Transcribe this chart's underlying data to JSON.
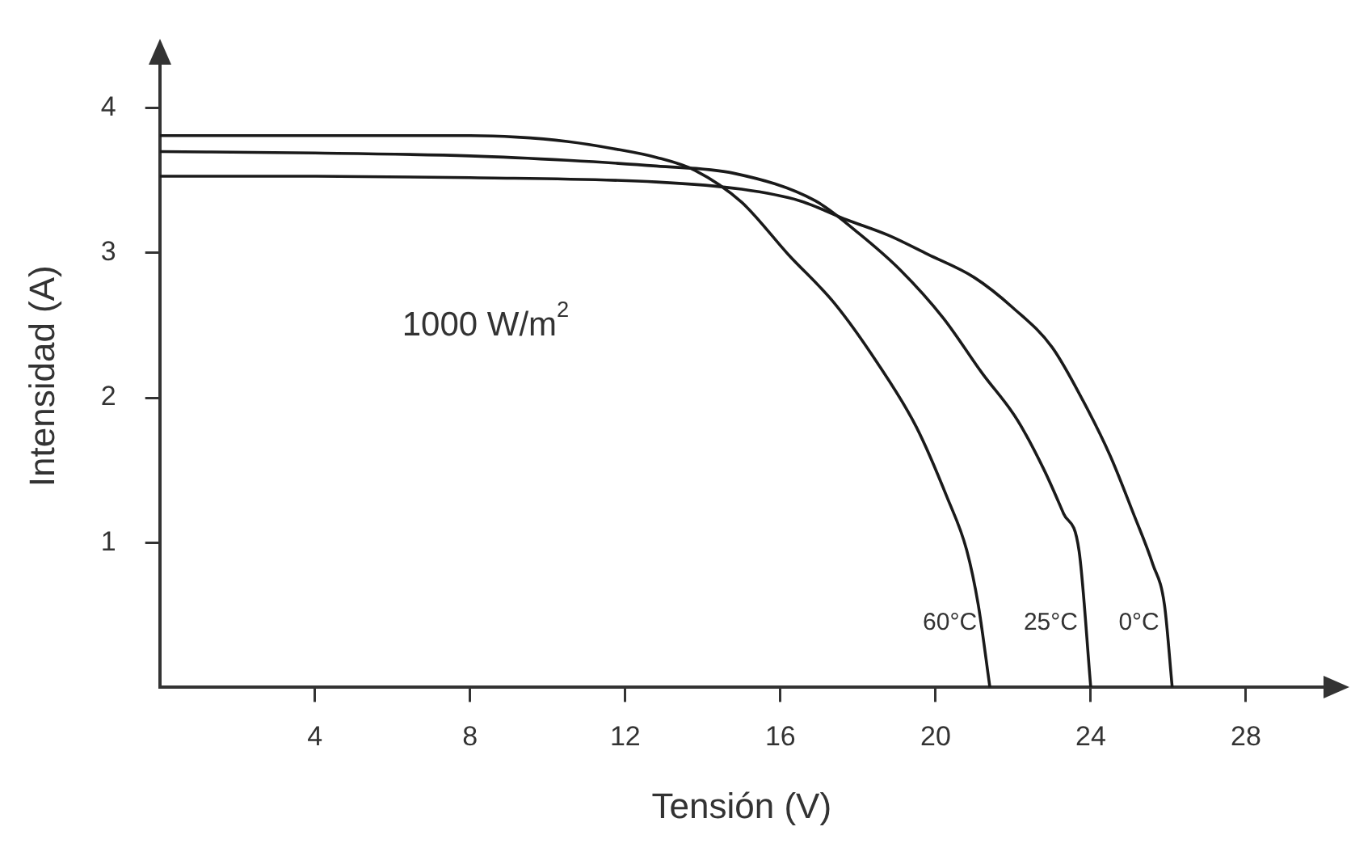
{
  "chart_data": {
    "type": "line",
    "xlabel": "Tensión (V)",
    "ylabel": "Intensidad (A)",
    "xlim": [
      0,
      30
    ],
    "ylim": [
      0,
      4.3
    ],
    "xticks": [
      4,
      8,
      12,
      16,
      20,
      24,
      28
    ],
    "yticks": [
      1,
      2,
      3,
      4
    ],
    "grid": false,
    "legend": false,
    "marker": "none",
    "line_style": "solid",
    "series": [
      {
        "name": "60°C",
        "color": "#1a1a1a",
        "x": [
          0,
          4,
          8,
          9.2,
          10.5,
          11.7,
          12.8,
          13.8,
          15,
          16.2,
          17.4,
          18.5,
          19.5,
          20.3,
          20.8,
          21.1,
          21.4
        ],
        "values": [
          3.81,
          3.81,
          3.81,
          3.8,
          3.77,
          3.72,
          3.66,
          3.57,
          3.35,
          2.99,
          2.65,
          2.24,
          1.8,
          1.31,
          0.95,
          0.57,
          0
        ]
      },
      {
        "name": "25°C",
        "color": "#1a1a1a",
        "x": [
          0,
          4,
          8,
          10.5,
          12.8,
          14.8,
          16.9,
          18,
          19.1,
          20.2,
          21.2,
          22.1,
          22.8,
          23.3,
          23.7,
          24
        ],
        "values": [
          3.7,
          3.69,
          3.67,
          3.64,
          3.6,
          3.55,
          3.36,
          3.14,
          2.88,
          2.55,
          2.17,
          1.85,
          1.5,
          1.2,
          0.94,
          0
        ]
      },
      {
        "name": "0°C",
        "color": "#1a1a1a",
        "x": [
          0,
          4,
          8,
          12.8,
          15,
          16.5,
          17.7,
          18.8,
          19.8,
          21,
          22,
          23,
          23.8,
          24.5,
          25.1,
          25.6,
          25.9,
          26.1
        ],
        "values": [
          3.53,
          3.53,
          3.52,
          3.49,
          3.44,
          3.36,
          3.23,
          3.12,
          2.99,
          2.83,
          2.62,
          2.35,
          1.98,
          1.6,
          1.2,
          0.85,
          0.57,
          0
        ]
      }
    ],
    "annotations": [
      "1000 W/m$^{2}$"
    ]
  }
}
